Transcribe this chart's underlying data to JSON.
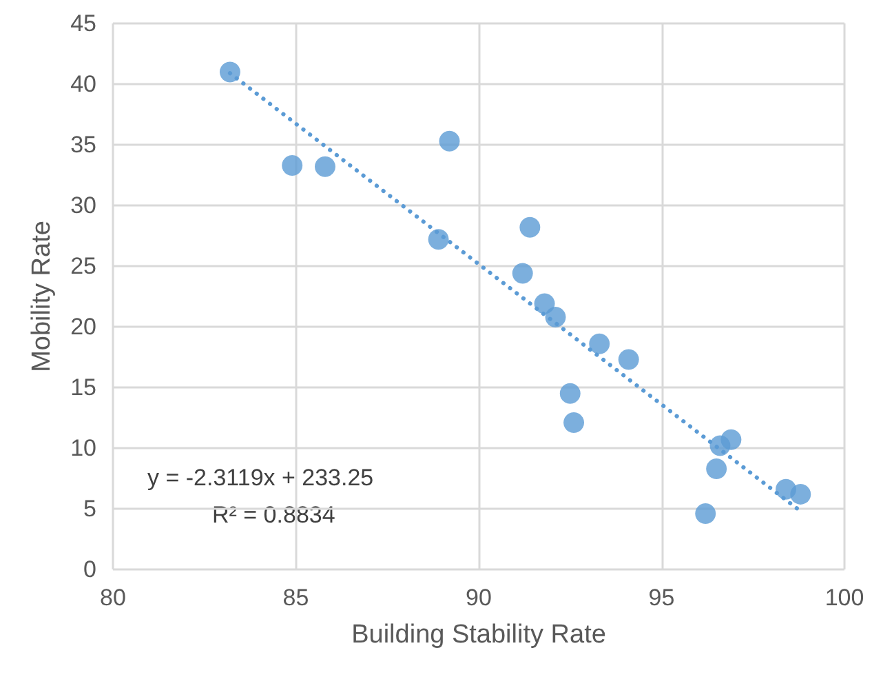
{
  "chart_data": {
    "type": "scatter",
    "xlabel": "Building Stability Rate",
    "ylabel": "Mobility Rate",
    "xlim": [
      80,
      100
    ],
    "xticks": [
      80,
      85,
      90,
      95,
      100
    ],
    "ylim": [
      0,
      45
    ],
    "yticks": [
      0,
      5,
      10,
      15,
      20,
      25,
      30,
      35,
      40,
      45
    ],
    "grid": true,
    "marker": "circle",
    "series": [
      {
        "color": "#5b9bd5",
        "x": [
          83.2,
          84.9,
          85.8,
          89.2,
          88.9,
          91.4,
          91.2,
          91.8,
          92.1,
          93.3,
          94.1,
          92.5,
          92.6,
          96.6,
          96.9,
          96.5,
          96.2,
          98.4,
          98.8
        ],
        "values": [
          41.0,
          33.3,
          33.2,
          35.3,
          27.2,
          28.2,
          24.4,
          21.9,
          20.8,
          18.6,
          17.3,
          14.5,
          12.1,
          10.2,
          10.7,
          8.3,
          4.6,
          6.6,
          6.2
        ]
      },
      {
        "type": "line",
        "color": "#5b9bd5",
        "line_style": "dotted",
        "marker": "none",
        "x": [
          83.2,
          98.8
        ],
        "values": [
          40.9,
          4.8
        ]
      }
    ],
    "annotations": [
      "y = -2.3119x + 233.25",
      "R² = 0.8834"
    ]
  }
}
